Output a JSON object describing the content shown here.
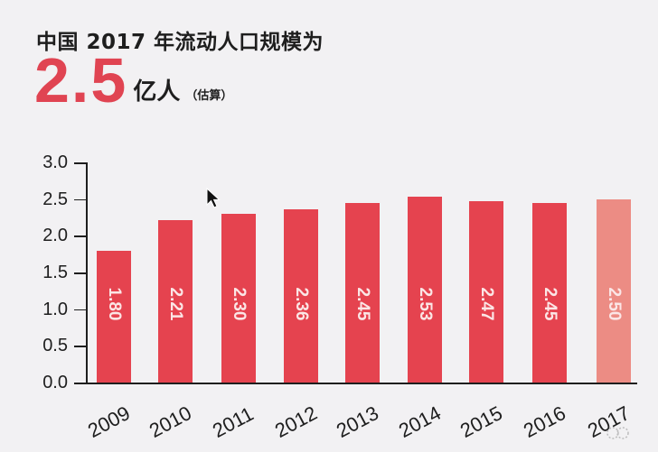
{
  "header": {
    "title": "中国 2017 年流动人口规模为",
    "big_number": "2.5",
    "unit": "亿人",
    "note": "（估算）"
  },
  "colors": {
    "background": "#f2f1f3",
    "accent": "#e04452",
    "bar": "#e5434f",
    "bar_estimate": "#ec8c84",
    "text": "#1e1e1e",
    "bar_label": "#fbe6e6"
  },
  "chart_data": {
    "type": "bar",
    "title": "中国 2017 年流动人口规模为 2.5 亿人（估算）",
    "xlabel": "",
    "ylabel": "",
    "categories": [
      "2009",
      "2010",
      "2011",
      "2012",
      "2013",
      "2014",
      "2015",
      "2016",
      "2017"
    ],
    "values": [
      1.8,
      2.21,
      2.3,
      2.36,
      2.45,
      2.53,
      2.47,
      2.45,
      2.5
    ],
    "value_labels": [
      "1.80",
      "2.21",
      "2.30",
      "2.36",
      "2.45",
      "2.53",
      "2.47",
      "2.45",
      "2.50"
    ],
    "estimated": [
      false,
      false,
      false,
      false,
      false,
      false,
      false,
      false,
      true
    ],
    "ylim": [
      0,
      3.0
    ],
    "yticks": [
      "0.0",
      "0.5",
      "1.0",
      "1.5",
      "2.0",
      "2.5",
      "3.0"
    ],
    "grid": false,
    "legend": null
  }
}
